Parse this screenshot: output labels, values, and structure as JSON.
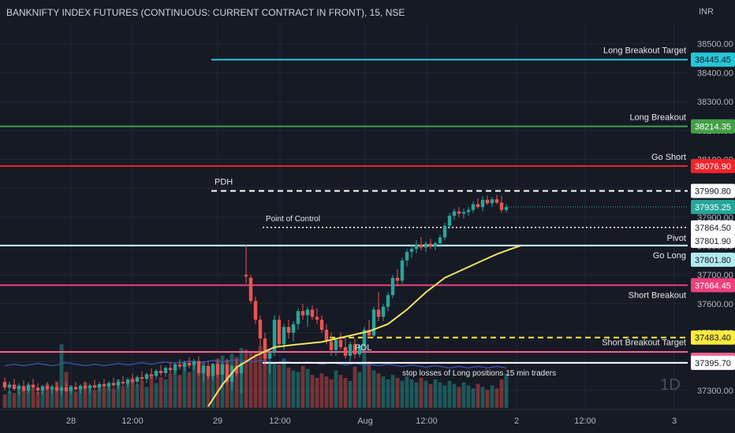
{
  "header": {
    "title": "BANKNIFTY INDEX FUTURES (CONTINUOUS: CURRENT CONTRACT IN FRONT), 15, NSE",
    "currency": "INR"
  },
  "watermark": "1D",
  "colors": {
    "background": "#161a25",
    "up": "#26a69a",
    "down": "#ef5350",
    "grid": "#232733",
    "axis_text": "#b2b5be",
    "vwap": "#f5e263",
    "volume_ma": "#3f51b5"
  },
  "chart_data": {
    "type": "candlestick",
    "y_axis": {
      "ticks": [
        37300.0,
        37400.0,
        37500.0,
        37600.0,
        37700.0,
        37800.0,
        37900.0,
        38000.0,
        38100.0,
        38200.0,
        38300.0,
        38400.0,
        38500.0
      ],
      "range": [
        37240,
        38570
      ]
    },
    "x_axis": {
      "ticks": [
        "28",
        "12:00",
        "29",
        "12:00",
        "Aug",
        "12:00",
        "2",
        "12:00",
        "3"
      ]
    },
    "levels": [
      {
        "label": "Long Breakout Target",
        "value": 38445.45,
        "color": "#26c6da",
        "style": "solid"
      },
      {
        "label": "Long Breakout",
        "value": 38214.35,
        "color": "#43a047",
        "style": "solid"
      },
      {
        "label": "Go Short",
        "value": 38076.9,
        "color": "#f2232a",
        "style": "solid"
      },
      {
        "label": "PDH",
        "value": 37990.8,
        "color": "#ffffff",
        "style": "dashed"
      },
      {
        "label": "Point of Control",
        "value": 37864.5,
        "color": "#ffffff",
        "style": "dotted"
      },
      {
        "label": "Pivot",
        "value": 37801.9,
        "color": "#ffffff",
        "style": "solid"
      },
      {
        "label": "Go Long",
        "value": 37801.8,
        "color": "#b2ebf2",
        "style": "solid"
      },
      {
        "label": "Short Breakout",
        "value": 37664.45,
        "color": "#ec407a",
        "style": "solid"
      },
      {
        "label": "Short Breakout Target",
        "value": 37483.4,
        "color": "#ffeb3b",
        "style": "dashed"
      },
      {
        "label": "PDL",
        "value": 37433.35,
        "color": "#f06292",
        "style": "solid"
      },
      {
        "label": "stop losses of  Long positions 15 min traders",
        "value": 37395.7,
        "color": "#ffffff",
        "style": "solid"
      }
    ],
    "last_price": {
      "value": 37935.25,
      "color": "#26a69a"
    },
    "candles": [
      {
        "o": 37330,
        "h": 37345,
        "l": 37300,
        "c": 37310
      },
      {
        "o": 37310,
        "h": 37330,
        "l": 37290,
        "c": 37320
      },
      {
        "o": 37320,
        "h": 37340,
        "l": 37300,
        "c": 37305
      },
      {
        "o": 37305,
        "h": 37325,
        "l": 37285,
        "c": 37315
      },
      {
        "o": 37315,
        "h": 37335,
        "l": 37295,
        "c": 37300
      },
      {
        "o": 37300,
        "h": 37330,
        "l": 37290,
        "c": 37320
      },
      {
        "o": 37320,
        "h": 37340,
        "l": 37305,
        "c": 37310
      },
      {
        "o": 37310,
        "h": 37325,
        "l": 37290,
        "c": 37300
      },
      {
        "o": 37300,
        "h": 37320,
        "l": 37285,
        "c": 37315
      },
      {
        "o": 37315,
        "h": 37330,
        "l": 37300,
        "c": 37305
      },
      {
        "o": 37305,
        "h": 37320,
        "l": 37290,
        "c": 37312
      },
      {
        "o": 37312,
        "h": 37328,
        "l": 37296,
        "c": 37300
      },
      {
        "o": 37300,
        "h": 37318,
        "l": 37284,
        "c": 37310
      },
      {
        "o": 37310,
        "h": 37326,
        "l": 37294,
        "c": 37298
      },
      {
        "o": 37298,
        "h": 37318,
        "l": 37286,
        "c": 37312
      },
      {
        "o": 37312,
        "h": 37330,
        "l": 37300,
        "c": 37304
      },
      {
        "o": 37304,
        "h": 37322,
        "l": 37290,
        "c": 37316
      },
      {
        "o": 37316,
        "h": 37332,
        "l": 37302,
        "c": 37308
      },
      {
        "o": 37308,
        "h": 37324,
        "l": 37292,
        "c": 37318
      },
      {
        "o": 37318,
        "h": 37336,
        "l": 37304,
        "c": 37310
      },
      {
        "o": 37310,
        "h": 37330,
        "l": 37296,
        "c": 37322
      },
      {
        "o": 37322,
        "h": 37340,
        "l": 37306,
        "c": 37314
      },
      {
        "o": 37314,
        "h": 37332,
        "l": 37300,
        "c": 37326
      },
      {
        "o": 37326,
        "h": 37344,
        "l": 37310,
        "c": 37318
      },
      {
        "o": 37318,
        "h": 37338,
        "l": 37304,
        "c": 37330
      },
      {
        "o": 37330,
        "h": 37350,
        "l": 37316,
        "c": 37324
      },
      {
        "o": 37324,
        "h": 37345,
        "l": 37310,
        "c": 37338
      },
      {
        "o": 37338,
        "h": 37358,
        "l": 37322,
        "c": 37330
      },
      {
        "o": 37330,
        "h": 37352,
        "l": 37316,
        "c": 37346
      },
      {
        "o": 37346,
        "h": 37366,
        "l": 37330,
        "c": 37340
      },
      {
        "o": 37340,
        "h": 37362,
        "l": 37326,
        "c": 37356
      },
      {
        "o": 37356,
        "h": 37376,
        "l": 37340,
        "c": 37350
      },
      {
        "o": 37350,
        "h": 37374,
        "l": 37336,
        "c": 37368
      },
      {
        "o": 37368,
        "h": 37388,
        "l": 37350,
        "c": 37360
      },
      {
        "o": 37360,
        "h": 37384,
        "l": 37346,
        "c": 37378
      },
      {
        "o": 37378,
        "h": 37396,
        "l": 37360,
        "c": 37370
      },
      {
        "o": 37370,
        "h": 37398,
        "l": 37356,
        "c": 37390
      },
      {
        "o": 37390,
        "h": 37408,
        "l": 37372,
        "c": 37382
      },
      {
        "o": 37382,
        "h": 37404,
        "l": 37366,
        "c": 37396
      },
      {
        "o": 37396,
        "h": 37414,
        "l": 37376,
        "c": 37386
      },
      {
        "o": 37386,
        "h": 37410,
        "l": 37370,
        "c": 37402
      },
      {
        "o": 37402,
        "h": 37418,
        "l": 37350,
        "c": 37360
      },
      {
        "o": 37360,
        "h": 37390,
        "l": 37330,
        "c": 37385
      },
      {
        "o": 37385,
        "h": 37400,
        "l": 37340,
        "c": 37350
      },
      {
        "o": 37350,
        "h": 37395,
        "l": 37335,
        "c": 37392
      },
      {
        "o": 37392,
        "h": 37405,
        "l": 37345,
        "c": 37355
      },
      {
        "o": 37355,
        "h": 37398,
        "l": 37310,
        "c": 37390
      },
      {
        "o": 37390,
        "h": 37410,
        "l": 37320,
        "c": 37330
      },
      {
        "o": 37330,
        "h": 37390,
        "l": 37300,
        "c": 37385
      },
      {
        "o": 37385,
        "h": 37405,
        "l": 37350,
        "c": 37360
      },
      {
        "o": 37360,
        "h": 37400,
        "l": 37290,
        "c": 37395
      },
      {
        "o": 37700,
        "h": 37805,
        "l": 37670,
        "c": 37695
      },
      {
        "o": 37690,
        "h": 37700,
        "l": 37600,
        "c": 37610
      },
      {
        "o": 37610,
        "h": 37625,
        "l": 37530,
        "c": 37545
      },
      {
        "o": 37545,
        "h": 37560,
        "l": 37450,
        "c": 37480
      },
      {
        "o": 37480,
        "h": 37500,
        "l": 37390,
        "c": 37410
      },
      {
        "o": 37410,
        "h": 37440,
        "l": 37360,
        "c": 37430
      },
      {
        "o": 37430,
        "h": 37560,
        "l": 37420,
        "c": 37545
      },
      {
        "o": 37545,
        "h": 37560,
        "l": 37450,
        "c": 37460
      },
      {
        "o": 37460,
        "h": 37530,
        "l": 37440,
        "c": 37520
      },
      {
        "o": 37520,
        "h": 37545,
        "l": 37480,
        "c": 37500
      },
      {
        "o": 37500,
        "h": 37540,
        "l": 37470,
        "c": 37530
      },
      {
        "o": 37530,
        "h": 37585,
        "l": 37510,
        "c": 37575
      },
      {
        "o": 37575,
        "h": 37600,
        "l": 37545,
        "c": 37560
      },
      {
        "o": 37560,
        "h": 37590,
        "l": 37520,
        "c": 37580
      },
      {
        "o": 37580,
        "h": 37595,
        "l": 37545,
        "c": 37555
      },
      {
        "o": 37555,
        "h": 37585,
        "l": 37530,
        "c": 37545
      },
      {
        "o": 37545,
        "h": 37560,
        "l": 37500,
        "c": 37510
      },
      {
        "o": 37510,
        "h": 37530,
        "l": 37460,
        "c": 37470
      },
      {
        "o": 37470,
        "h": 37500,
        "l": 37420,
        "c": 37440
      },
      {
        "o": 37440,
        "h": 37480,
        "l": 37420,
        "c": 37475
      },
      {
        "o": 37475,
        "h": 37500,
        "l": 37440,
        "c": 37450
      },
      {
        "o": 37450,
        "h": 37490,
        "l": 37410,
        "c": 37420
      },
      {
        "o": 37420,
        "h": 37470,
        "l": 37400,
        "c": 37460
      },
      {
        "o": 37460,
        "h": 37480,
        "l": 37410,
        "c": 37425
      },
      {
        "o": 37425,
        "h": 37460,
        "l": 37415,
        "c": 37455
      },
      {
        "o": 37455,
        "h": 37520,
        "l": 37440,
        "c": 37510
      },
      {
        "o": 37510,
        "h": 37545,
        "l": 37480,
        "c": 37490
      },
      {
        "o": 37490,
        "h": 37590,
        "l": 37485,
        "c": 37580
      },
      {
        "o": 37580,
        "h": 37640,
        "l": 37540,
        "c": 37555
      },
      {
        "o": 37555,
        "h": 37600,
        "l": 37540,
        "c": 37590
      },
      {
        "o": 37590,
        "h": 37640,
        "l": 37575,
        "c": 37630
      },
      {
        "o": 37630,
        "h": 37700,
        "l": 37620,
        "c": 37690
      },
      {
        "o": 37690,
        "h": 37720,
        "l": 37660,
        "c": 37680
      },
      {
        "o": 37680,
        "h": 37760,
        "l": 37670,
        "c": 37750
      },
      {
        "o": 37750,
        "h": 37790,
        "l": 37730,
        "c": 37780
      },
      {
        "o": 37780,
        "h": 37805,
        "l": 37760,
        "c": 37790
      },
      {
        "o": 37790,
        "h": 37820,
        "l": 37775,
        "c": 37805
      },
      {
        "o": 37805,
        "h": 37830,
        "l": 37785,
        "c": 37795
      },
      {
        "o": 37795,
        "h": 37815,
        "l": 37780,
        "c": 37808
      },
      {
        "o": 37808,
        "h": 37825,
        "l": 37790,
        "c": 37798
      },
      {
        "o": 37798,
        "h": 37815,
        "l": 37785,
        "c": 37810
      },
      {
        "o": 37810,
        "h": 37840,
        "l": 37795,
        "c": 37830
      },
      {
        "o": 37830,
        "h": 37880,
        "l": 37820,
        "c": 37870
      },
      {
        "o": 37870,
        "h": 37915,
        "l": 37860,
        "c": 37905
      },
      {
        "o": 37905,
        "h": 37930,
        "l": 37890,
        "c": 37920
      },
      {
        "o": 37920,
        "h": 37935,
        "l": 37900,
        "c": 37912
      },
      {
        "o": 37912,
        "h": 37930,
        "l": 37895,
        "c": 37918
      },
      {
        "o": 37918,
        "h": 37935,
        "l": 37905,
        "c": 37925
      },
      {
        "o": 37925,
        "h": 37955,
        "l": 37915,
        "c": 37945
      },
      {
        "o": 37945,
        "h": 37965,
        "l": 37930,
        "c": 37935
      },
      {
        "o": 37935,
        "h": 37972,
        "l": 37920,
        "c": 37960
      },
      {
        "o": 37960,
        "h": 37975,
        "l": 37942,
        "c": 37948
      },
      {
        "o": 37948,
        "h": 37970,
        "l": 37935,
        "c": 37962
      },
      {
        "o": 37962,
        "h": 37978,
        "l": 37945,
        "c": 37950
      },
      {
        "o": 37950,
        "h": 37975,
        "l": 37915,
        "c": 37925
      },
      {
        "o": 37925,
        "h": 37945,
        "l": 37915,
        "c": 37935
      }
    ],
    "vwap_line": [
      {
        "i": 38,
        "v": 37245
      },
      {
        "i": 41,
        "v": 37320
      },
      {
        "i": 44,
        "v": 37380
      },
      {
        "i": 48,
        "v": 37420
      },
      {
        "i": 52,
        "v": 37450
      },
      {
        "i": 56,
        "v": 37458
      },
      {
        "i": 62,
        "v": 37468
      },
      {
        "i": 68,
        "v": 37490
      },
      {
        "i": 72,
        "v": 37505
      },
      {
        "i": 76,
        "v": 37530
      },
      {
        "i": 80,
        "v": 37580
      },
      {
        "i": 84,
        "v": 37640
      },
      {
        "i": 88,
        "v": 37690
      },
      {
        "i": 92,
        "v": 37720
      },
      {
        "i": 96,
        "v": 37750
      },
      {
        "i": 99,
        "v": 37772
      },
      {
        "i": 102,
        "v": 37790
      },
      {
        "i": 104,
        "v": 37801
      }
    ],
    "volumes": [
      18,
      22,
      20,
      30,
      24,
      28,
      26,
      21,
      25,
      32,
      29,
      35,
      85,
      48,
      30,
      22,
      26,
      34,
      28,
      24,
      30,
      27,
      33,
      26,
      38,
      29,
      34,
      40,
      31,
      36,
      28,
      45,
      33,
      41,
      38,
      46,
      52,
      44,
      60,
      48,
      56,
      50,
      62,
      55,
      58,
      66,
      70,
      64,
      72,
      68,
      80,
      78,
      76,
      74,
      82,
      70,
      62,
      60,
      58,
      66,
      54,
      50,
      48,
      56,
      52,
      44,
      40,
      46,
      42,
      38,
      50,
      44,
      40,
      36,
      55,
      48,
      90,
      62,
      50,
      46,
      42,
      38,
      44,
      40,
      36,
      42,
      38,
      34,
      40,
      36,
      32,
      38,
      34,
      30,
      36,
      32,
      28,
      34,
      30,
      26,
      32,
      28,
      24,
      30,
      26,
      38,
      46
    ],
    "volume_ma": [
      30,
      31,
      32,
      31,
      30,
      31,
      32,
      33,
      32,
      31,
      30,
      31,
      33,
      34,
      33,
      32,
      31,
      30,
      31,
      32,
      31,
      30,
      31,
      32,
      33,
      32,
      31,
      32,
      33,
      34,
      33,
      32,
      33,
      34,
      35,
      34,
      33,
      34,
      35,
      36,
      35,
      34,
      35,
      36,
      37,
      36,
      35,
      36,
      37,
      38,
      37,
      36,
      35,
      36,
      37,
      36,
      35,
      34,
      35,
      36,
      35,
      34,
      33,
      34,
      35,
      34,
      33,
      32,
      33,
      34,
      33,
      32,
      31,
      32,
      33,
      32,
      31,
      32,
      31,
      30,
      31,
      32,
      31,
      30,
      29,
      30,
      31,
      30,
      29,
      28,
      29,
      30,
      29,
      28,
      27,
      28,
      29,
      28,
      27,
      28,
      29,
      28,
      27,
      28,
      29,
      28,
      27
    ]
  }
}
